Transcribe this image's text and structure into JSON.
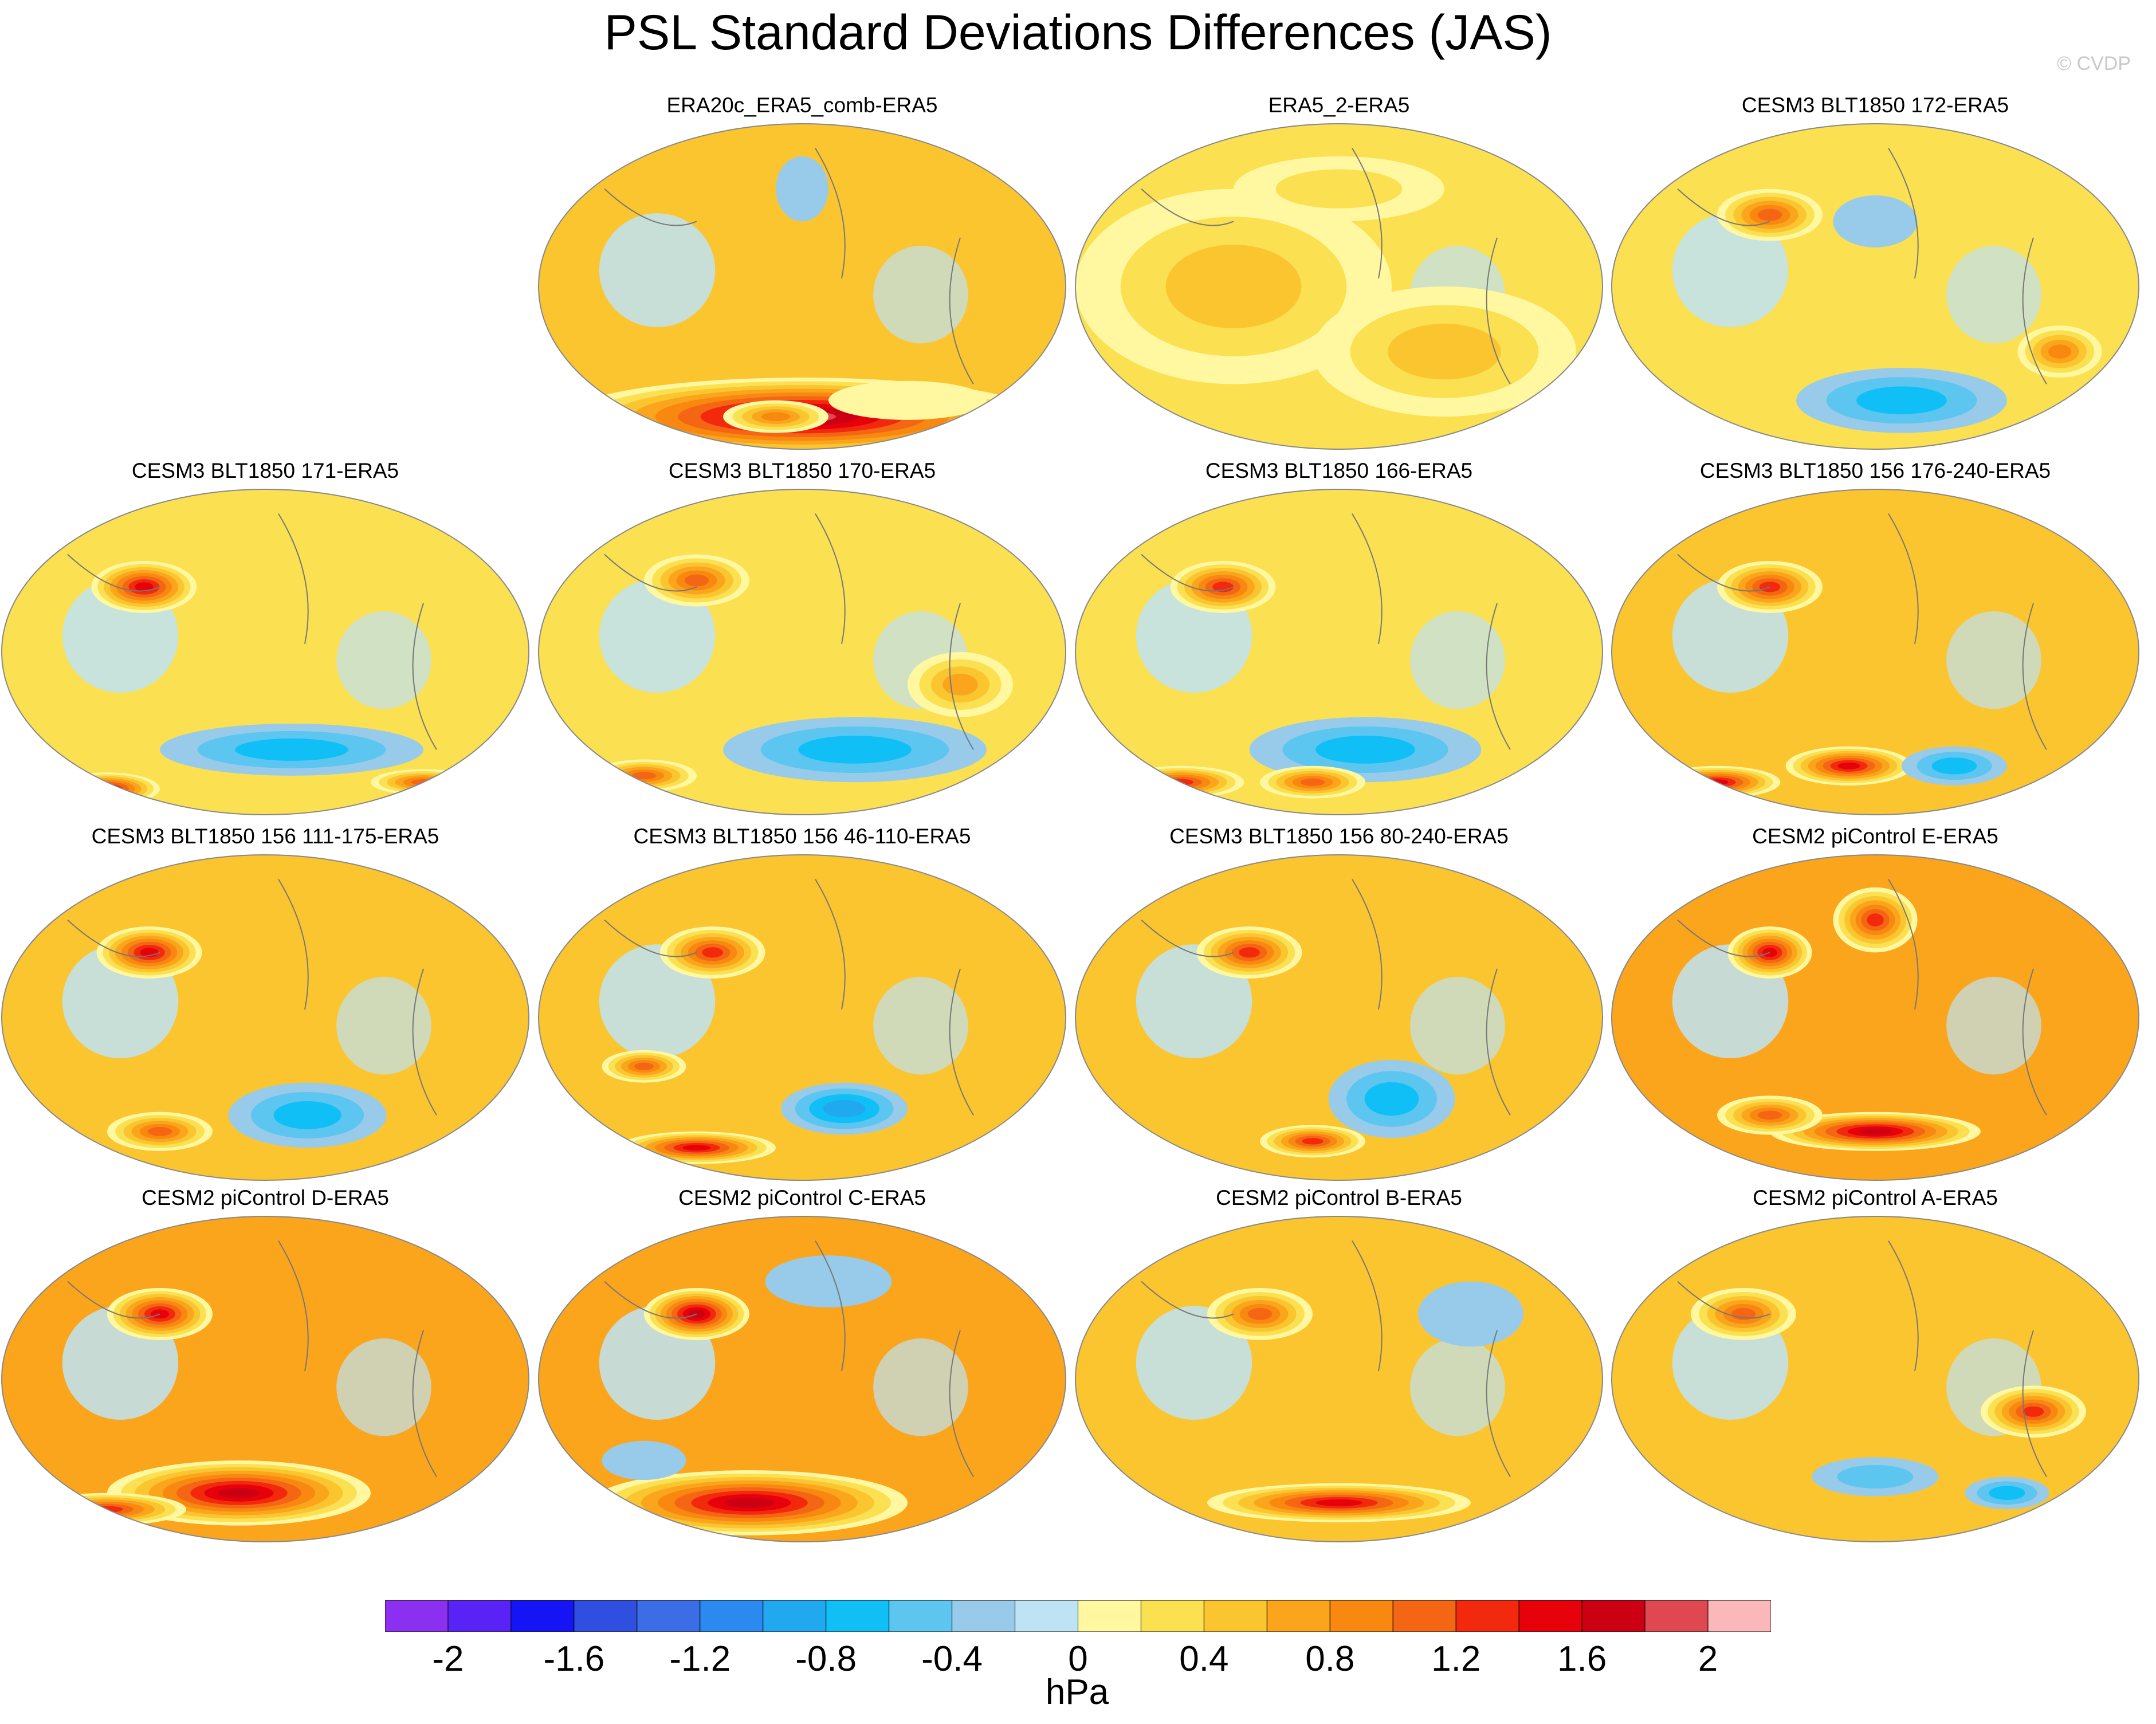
{
  "header": {
    "title": "PSL Standard Deviations Differences (JAS)",
    "copyright": "© CVDP"
  },
  "panels": [
    {
      "title": "ERA20c_ERA5_comb-ERA5",
      "base": 3,
      "blobs": [
        [
          0.5,
          0.9,
          0.45,
          0.12,
          10
        ],
        [
          0.45,
          0.9,
          0.1,
          0.05,
          5
        ],
        [
          0.7,
          0.85,
          0.15,
          0.06,
          1
        ],
        [
          0.5,
          0.2,
          0.05,
          0.1,
          -1
        ]
      ]
    },
    {
      "title": "ERA5_2-ERA5",
      "base": 2,
      "blobs": [
        [
          0.3,
          0.5,
          0.3,
          0.3,
          3
        ],
        [
          0.7,
          0.7,
          0.25,
          0.2,
          3
        ],
        [
          0.5,
          0.2,
          0.2,
          0.1,
          2
        ]
      ]
    },
    {
      "title": "CESM3 BLT1850 172-ERA5",
      "base": 2,
      "blobs": [
        [
          0.3,
          0.28,
          0.1,
          0.08,
          6
        ],
        [
          0.55,
          0.85,
          0.2,
          0.1,
          -3
        ],
        [
          0.85,
          0.7,
          0.08,
          0.08,
          5
        ],
        [
          0.5,
          0.3,
          0.08,
          0.08,
          -1
        ]
      ]
    },
    {
      "title": "CESM3 BLT1850 171-ERA5",
      "base": 2,
      "blobs": [
        [
          0.27,
          0.3,
          0.1,
          0.08,
          8
        ],
        [
          0.55,
          0.8,
          0.25,
          0.08,
          -3
        ],
        [
          0.2,
          0.92,
          0.1,
          0.05,
          8
        ],
        [
          0.8,
          0.9,
          0.1,
          0.04,
          6
        ]
      ]
    },
    {
      "title": "CESM3 BLT1850 170-ERA5",
      "base": 2,
      "blobs": [
        [
          0.3,
          0.28,
          0.1,
          0.08,
          6
        ],
        [
          0.6,
          0.8,
          0.25,
          0.1,
          -3
        ],
        [
          0.2,
          0.88,
          0.1,
          0.05,
          6
        ],
        [
          0.8,
          0.6,
          0.1,
          0.1,
          4
        ]
      ]
    },
    {
      "title": "CESM3 BLT1850 166-ERA5",
      "base": 2,
      "blobs": [
        [
          0.28,
          0.3,
          0.1,
          0.08,
          7
        ],
        [
          0.55,
          0.8,
          0.22,
          0.1,
          -3
        ],
        [
          0.2,
          0.9,
          0.12,
          0.05,
          7
        ],
        [
          0.45,
          0.9,
          0.1,
          0.05,
          6
        ]
      ]
    },
    {
      "title": "CESM3 BLT1850 156 176-240-ERA5",
      "base": 3,
      "blobs": [
        [
          0.3,
          0.3,
          0.1,
          0.08,
          7
        ],
        [
          0.45,
          0.85,
          0.12,
          0.06,
          8
        ],
        [
          0.65,
          0.85,
          0.1,
          0.06,
          -3
        ],
        [
          0.2,
          0.9,
          0.12,
          0.05,
          8
        ]
      ]
    },
    {
      "title": "CESM3 BLT1850 156 111-175-ERA5",
      "base": 3,
      "blobs": [
        [
          0.28,
          0.3,
          0.1,
          0.08,
          8
        ],
        [
          0.58,
          0.8,
          0.15,
          0.1,
          -3
        ],
        [
          0.3,
          0.85,
          0.1,
          0.06,
          6
        ]
      ]
    },
    {
      "title": "CESM3 BLT1850 156 46-110-ERA5",
      "base": 3,
      "blobs": [
        [
          0.33,
          0.3,
          0.1,
          0.08,
          7
        ],
        [
          0.58,
          0.78,
          0.12,
          0.08,
          -4
        ],
        [
          0.3,
          0.9,
          0.15,
          0.05,
          8
        ],
        [
          0.2,
          0.65,
          0.08,
          0.05,
          6
        ]
      ]
    },
    {
      "title": "CESM3 BLT1850 156 80-240-ERA5",
      "base": 3,
      "blobs": [
        [
          0.33,
          0.3,
          0.1,
          0.08,
          7
        ],
        [
          0.6,
          0.75,
          0.12,
          0.12,
          -3
        ],
        [
          0.45,
          0.88,
          0.1,
          0.05,
          7
        ]
      ]
    },
    {
      "title": "CESM2 piControl E-ERA5",
      "base": 4,
      "blobs": [
        [
          0.3,
          0.3,
          0.08,
          0.08,
          8
        ],
        [
          0.5,
          0.2,
          0.08,
          0.1,
          7
        ],
        [
          0.5,
          0.85,
          0.2,
          0.06,
          9
        ],
        [
          0.3,
          0.8,
          0.1,
          0.06,
          6
        ]
      ]
    },
    {
      "title": "CESM2 piControl D-ERA5",
      "base": 4,
      "blobs": [
        [
          0.3,
          0.3,
          0.1,
          0.08,
          8
        ],
        [
          0.45,
          0.85,
          0.25,
          0.1,
          9
        ],
        [
          0.2,
          0.9,
          0.15,
          0.05,
          7
        ]
      ]
    },
    {
      "title": "CESM2 piControl C-ERA5",
      "base": 4,
      "blobs": [
        [
          0.3,
          0.3,
          0.1,
          0.08,
          9
        ],
        [
          0.4,
          0.88,
          0.3,
          0.1,
          9
        ],
        [
          0.2,
          0.75,
          0.08,
          0.06,
          -1
        ],
        [
          0.55,
          0.2,
          0.12,
          0.08,
          -1
        ]
      ]
    },
    {
      "title": "CESM2 piControl B-ERA5",
      "base": 3,
      "blobs": [
        [
          0.35,
          0.3,
          0.1,
          0.08,
          6
        ],
        [
          0.5,
          0.88,
          0.25,
          0.06,
          8
        ],
        [
          0.75,
          0.3,
          0.1,
          0.1,
          -1
        ]
      ]
    },
    {
      "title": "CESM2 piControl A-ERA5",
      "base": 3,
      "blobs": [
        [
          0.25,
          0.3,
          0.1,
          0.08,
          6
        ],
        [
          0.5,
          0.8,
          0.12,
          0.06,
          -2
        ],
        [
          0.75,
          0.85,
          0.08,
          0.05,
          -3
        ],
        [
          0.8,
          0.6,
          0.1,
          0.08,
          7
        ]
      ]
    }
  ],
  "colorbar": {
    "colors": [
      "#8b2ff0",
      "#5a23f5",
      "#1414f5",
      "#2f4fe0",
      "#3b6ee6",
      "#2a8af0",
      "#21a9f0",
      "#0fbff5",
      "#5cc5f0",
      "#98cbe9",
      "#bde3f4",
      "#fff8a0",
      "#fbe052",
      "#fbc530",
      "#faa51c",
      "#f98810",
      "#f46613",
      "#f3290e",
      "#e6010b",
      "#cc0012",
      "#df4850",
      "#fbb8bb"
    ],
    "labels": [
      "-2",
      "-1.6",
      "-1.2",
      "-0.8",
      "-0.4",
      "0",
      "0.4",
      "0.8",
      "1.2",
      "1.6",
      "2"
    ],
    "units": "hPa"
  }
}
